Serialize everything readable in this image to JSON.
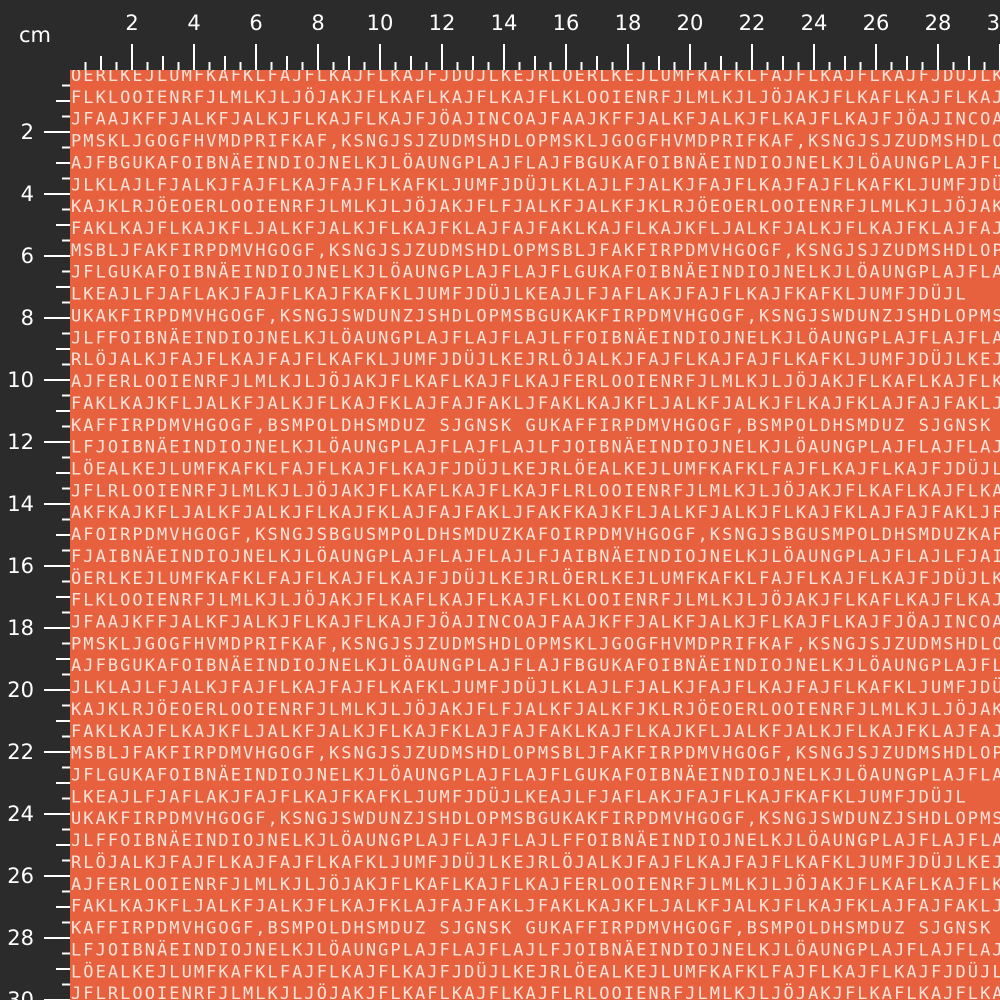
{
  "ruler": {
    "unit": "cm",
    "top_labels": [
      2,
      4,
      6,
      8,
      10,
      12,
      14,
      16,
      18,
      20,
      22,
      24,
      26,
      28,
      30
    ],
    "left_labels": [
      2,
      4,
      6,
      8,
      10,
      12,
      14,
      16,
      18,
      20,
      22,
      24,
      26,
      28,
      30
    ]
  },
  "pattern": {
    "rows": [
      "ÖERLKEJLUMFKAFKLFAJFLKAJFLKAJFJDÜJLKEJRLÖERLKEJLUMFKAFKLFAJFLKAJFLKAJFJDÜJLKEJRLÖ",
      "FLKLOOIENRFJLMLKJLJÖJAKJFLKAFLKAJFLKAJFLKLOOIENRFJLMLKJLJÖJAKJFLKAFLKAJFLKAJF",
      "JFAAJKFFJALKFJALKJFLKAJFLKAJFJÖAJINCOAJFAAJKFFJALKFJALKJFLKAJFLKAJFJÖAJINCOAJF",
      "PMSKLJGOGFHVMDPRIFKAF,KSNGJSJZUDMSHDLOPMSKLJGOGFHVMDPRIFKAF,KSNGJSJZUDMSHDLOP",
      "AJFBGUKAFOIBNÄEINDIOJNELKJLÖAUNGPLAJFLAJFBGUKAFOIBNÄEINDIOJNELKJLÖAUNGPLAJFLA",
      "JLKLAJLFJALKJFAJFLKAJFAJFLKAFKLJUMFJDÜJLKLAJLFJALKJFAJFLKAJFAJFLKAFKLJUMFJDÜJ",
      "KAJKLRJÖEOERLOOIENRFJLMLKJLJÖJAKJFLFJALKFJALKFJKLRJÖEOERLOOIENRFJLMLKJLJÖJAKJF",
      "FAKLKAJFLKAJKFLJALKFJALKJFLKAJFKLAJFAJFAKLKAJFLKAJKFLJALKFJALKJFLKAJFKLAJFAJF",
      "MSBLJFAKFIRPDMVHGOGF,KSNGJSJZUDMSHDLOPMSBLJFAKFIRPDMVHGOGF,KSNGJSJZUDMSHDLOPMS",
      "JFLGUKAFOIBNÄEINDIOJNELKJLÖAUNGPLAJFLAJFLGUKAFOIBNÄEINDIOJNELKJLÖAUNGPLAJFLAJ",
      "LKEAJLFJAFLAKJFAJFLKAJFKAFKLJUMFJDÜJLKEAJLFJAFLAKJFAJFLKAJFKAFKLJUMFJDÜJL",
      "UKAKFIRPDMVHGOGF,KSNGJSWDUNZJSHDLOPMSBGUKAKFIRPDMVHGOGF,KSNGJSWDUNZJSHDLOPMSBGUK",
      "JLFFOIBNÄEINDIOJNELKJLÖAUNGPLAJFLAJFLAJLFFOIBNÄEINDIOJNELKJLÖAUNGPLAJFLAJFLAJ",
      "RLÖJALKJFAJFLKAJFAJFLKAFKLJUMFJDÜJLKEJRLÖJALKJFAJFLKAJFAJFLKAFKLJUMFJDÜJLKEJR",
      "AJFERLOOIENRFJLMLKJLJÖJAKJFLKAFLKAJFLKAJFERLOOIENRFJLMLKJLJÖJAKJFLKAFLKAJFLKA",
      "FAKLKAJKFLJALKFJALKJFLKAJFKLAJFAJFAKLJFAKLKAJKFLJALKFJALKJFLKAJFKLAJFAJFAKLJF",
      "KAFFIRPDMVHGOGF,BSMPOLDHSMDUZ SJGNSK GUKAFFIRPDMVHGOGF,BSMPOLDHSMDUZ SJGNSK GUKA",
      "LFJOIBNÄEINDIOJNELKJLÖAUNGPLAJFLAJFLAJLFJOIBNÄEINDIOJNELKJLÖAUNGPLAJFLAJFLAJL",
      "LÖEALKEJLUMFKAFKLFAJFLKAJFLKAJFJDÜJLKEJRLÖEALKEJLUMFKAFKLFAJFLKAJFLKAJFJDÜJLKEJRLÖ",
      "JFLRLOOIENRFJLMLKJLJÖJAKJFLKAFLKAJFLKAJFLRLOOIENRFJLMLKJLJÖJAKJFLKAFLKAJFLKAJ",
      "AKFKAJKFLJALKFJALKJFLKAJFKLAJFAJFAKLJFAKFKAJKFLJALKFJALKJFLKAJFKLAJFAJFAKLJFA",
      "AFOIRPDMVHGOGF,KSNGJSBGUSMPOLDHSMDUZKAFOIRPDMVHGOGF,KSNGJSBGUSMPOLDHSMDUZKAFO",
      "FJAIBNÄEINDIOJNELKJLÖAUNGPLAJFLAJFLAJLFJAIBNÄEINDIOJNELKJLÖAUNGPLAJFLAJLFJAIB"
    ]
  }
}
